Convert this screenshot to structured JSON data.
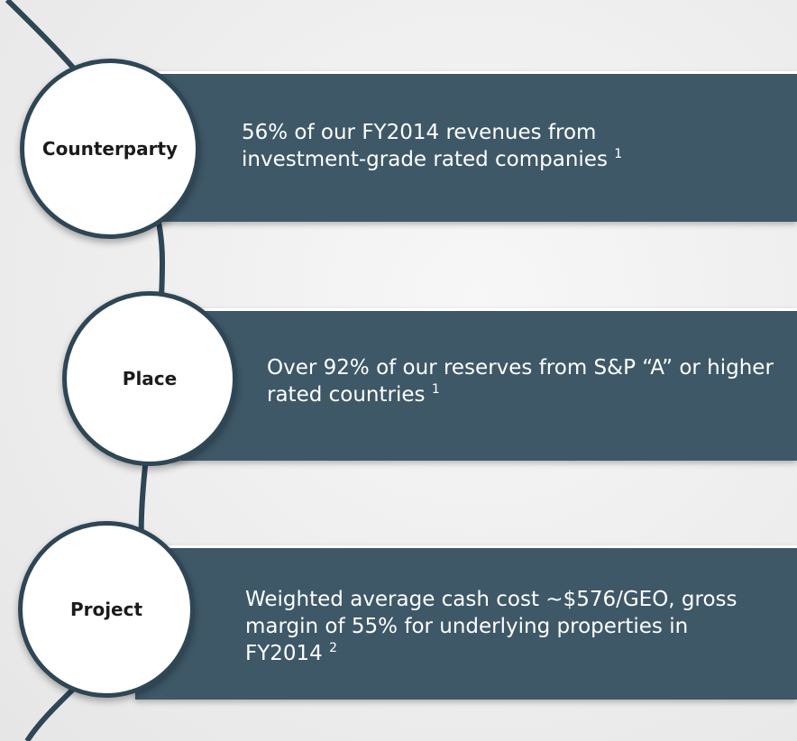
{
  "items": [
    {
      "label": "Counterparty",
      "text": "56% of our FY2014 revenues from investment-grade rated companies",
      "footnote": "1"
    },
    {
      "label": "Place",
      "text": "Over 92% of our reserves from S&P “A” or higher rated countries",
      "footnote": "1"
    },
    {
      "label": "Project",
      "text": "Weighted average cash cost ~$576/GEO, gross margin of 55% for underlying properties in FY2014",
      "footnote": "2"
    }
  ]
}
